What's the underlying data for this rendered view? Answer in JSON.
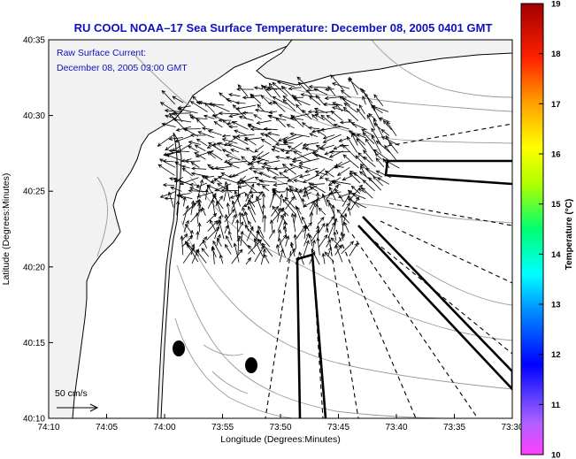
{
  "title": "RU COOL  NOAA–17  Sea Surface Temperature:  December 08, 2005 0401 GMT",
  "legend": {
    "line1": "Raw Surface Current:",
    "line2": "December 08, 2005 03:00 GMT",
    "scale_label": "50 cm/s"
  },
  "axes": {
    "xlabel": "Longitude (Degrees:Minutes)",
    "ylabel": "Latitude (Degrees:Minutes)",
    "x_ticks": [
      "74:10",
      "74:05",
      "74:00",
      "73:55",
      "73:50",
      "73:45",
      "73:40",
      "73:35",
      "73:30"
    ],
    "y_ticks": [
      "40:35",
      "40:30",
      "40:25",
      "40:20",
      "40:15",
      "40:10"
    ]
  },
  "colorbar": {
    "label": "Temperature (°C)",
    "ticks": [
      "19",
      "18",
      "17",
      "16",
      "15",
      "14",
      "13",
      "12",
      "11",
      "10"
    ],
    "min": 10,
    "max": 19
  },
  "colors": {
    "title": "#1010c0",
    "land": "#f2f2f2",
    "coast": "#000000",
    "contour": "#999999"
  }
}
